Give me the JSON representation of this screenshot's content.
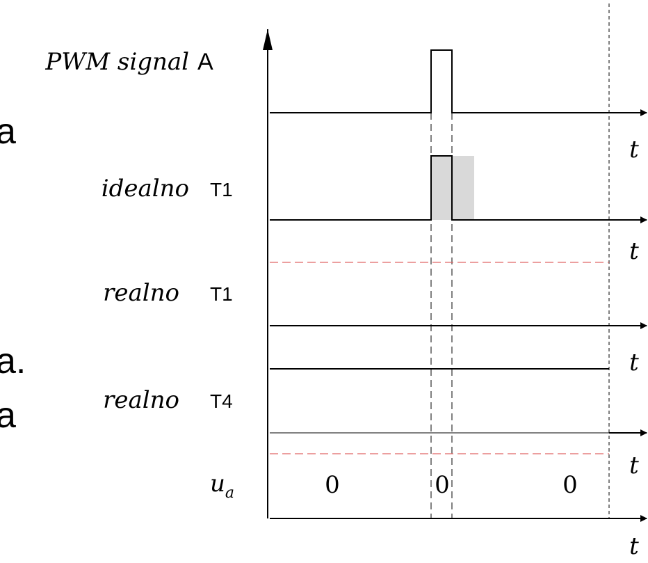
{
  "diagram": {
    "slide_fragments": [
      "a",
      "a.",
      "a"
    ],
    "rows": [
      {
        "label": "PWM signal",
        "tag": "A"
      },
      {
        "label": "idealno",
        "tag": "T1"
      },
      {
        "label": "realno",
        "tag": "T1"
      },
      {
        "label": "realno",
        "tag": "T4"
      }
    ],
    "output_label_base": "u",
    "output_label_sub": "a",
    "output_values": [
      "0",
      "0",
      "0"
    ],
    "time_axis_label": "t",
    "colors": {
      "line": "#000000",
      "dead_time_fill": "#d9d9d9",
      "red_dashed": "#e06666",
      "guide_dashed": "#000000"
    }
  }
}
